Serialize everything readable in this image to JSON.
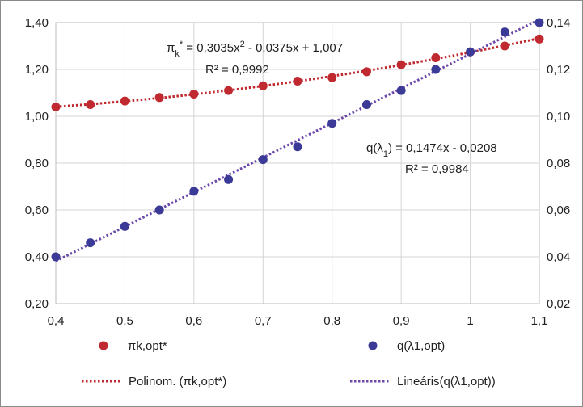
{
  "chart_data": {
    "type": "scatter",
    "x_axis": {
      "range": [
        0.4,
        1.1
      ],
      "ticks": [
        0.4,
        0.5,
        0.6,
        0.7,
        0.8,
        0.9,
        1.0,
        1.1
      ],
      "tick_labels": [
        "0,4",
        "0,5",
        "0,6",
        "0,7",
        "0,8",
        "0,9",
        "1",
        "1,1"
      ]
    },
    "y_axis_left": {
      "range": [
        0.2,
        1.4
      ],
      "ticks": [
        0.2,
        0.4,
        0.6,
        0.8,
        1.0,
        1.2,
        1.4
      ],
      "tick_labels": [
        "0,20",
        "0,40",
        "0,60",
        "0,80",
        "1,00",
        "1,20",
        "1,40"
      ]
    },
    "y_axis_right": {
      "range": [
        0.02,
        0.14
      ],
      "ticks": [
        0.02,
        0.04,
        0.06,
        0.08,
        0.1,
        0.12,
        0.14
      ],
      "tick_labels": [
        "0,02",
        "0,04",
        "0,06",
        "0,08",
        "0,10",
        "0,12",
        "0,14"
      ]
    },
    "grid": true,
    "series": [
      {
        "name": "πk,opt*",
        "axis": "left",
        "color": "#c0292f",
        "marker": "circle",
        "points": [
          [
            0.4,
            1.04
          ],
          [
            0.45,
            1.05
          ],
          [
            0.5,
            1.065
          ],
          [
            0.55,
            1.08
          ],
          [
            0.6,
            1.095
          ],
          [
            0.65,
            1.11
          ],
          [
            0.7,
            1.13
          ],
          [
            0.75,
            1.15
          ],
          [
            0.8,
            1.165
          ],
          [
            0.85,
            1.19
          ],
          [
            0.9,
            1.22
          ],
          [
            0.95,
            1.25
          ],
          [
            1.0,
            1.275
          ],
          [
            1.05,
            1.3
          ],
          [
            1.1,
            1.33
          ]
        ]
      },
      {
        "name": "q(λ1,opt)",
        "axis": "right",
        "color": "#3b3a97",
        "marker": "circle",
        "points": [
          [
            0.4,
            0.04
          ],
          [
            0.45,
            0.046
          ],
          [
            0.5,
            0.053
          ],
          [
            0.55,
            0.06
          ],
          [
            0.6,
            0.068
          ],
          [
            0.65,
            0.073
          ],
          [
            0.7,
            0.0815
          ],
          [
            0.75,
            0.087
          ],
          [
            0.8,
            0.097
          ],
          [
            0.85,
            0.105
          ],
          [
            0.9,
            0.111
          ],
          [
            0.95,
            0.12
          ],
          [
            1.0,
            0.1275
          ],
          [
            1.05,
            0.136
          ],
          [
            1.1,
            0.14
          ]
        ]
      }
    ],
    "trendlines": [
      {
        "name": "Polinom. (πk,opt*)",
        "axis": "left",
        "type": "polynomial",
        "coefficients": [
          0.3035,
          -0.0375,
          1.007
        ],
        "color": "#c0292f",
        "style": "dotted"
      },
      {
        "name": "Lineáris(q(λ1,opt))",
        "axis": "right",
        "type": "linear",
        "slope": 0.1474,
        "intercept": -0.0208,
        "color": "#6b48a8",
        "style": "dotted"
      }
    ],
    "annotations": [
      {
        "id": "pi",
        "lines": [
          [
            {
              "t": "π"
            },
            {
              "t": "k",
              "sub": true
            },
            {
              "t": "*",
              "sup": true
            },
            {
              "t": " = 0,3035x"
            },
            {
              "t": "2",
              "sup": true
            },
            {
              "t": " - 0,0375x + 1,007"
            }
          ],
          [
            {
              "t": "R² = 0,9992"
            }
          ]
        ]
      },
      {
        "id": "q",
        "lines": [
          [
            {
              "t": "q(λ"
            },
            {
              "t": "1",
              "sub": true
            },
            {
              "t": ") = 0,1474x - 0,0208"
            }
          ],
          [
            {
              "t": "R² = 0,9984"
            }
          ]
        ]
      }
    ],
    "legend": {
      "position": "bottom",
      "items": [
        {
          "kind": "marker",
          "color": "#c0292f",
          "label": "πk,opt*"
        },
        {
          "kind": "marker",
          "color": "#3b3a97",
          "label": "q(λ1,opt)"
        },
        {
          "kind": "line",
          "color": "#c0292f",
          "label": "Polinom. (πk,opt*)"
        },
        {
          "kind": "line",
          "color": "#6b48a8",
          "label": "Lineáris(q(λ1,opt))"
        }
      ]
    }
  }
}
